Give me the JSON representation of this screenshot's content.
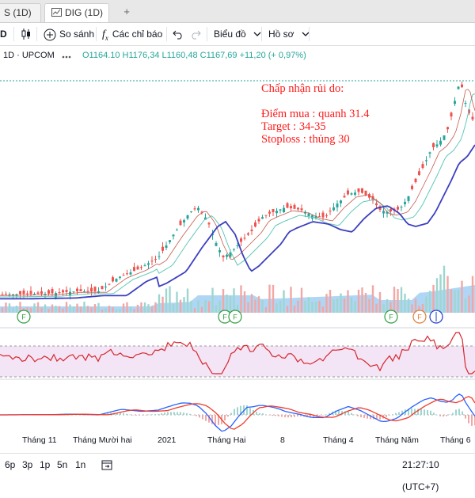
{
  "tabs": [
    {
      "label": "S (1D)",
      "active": false
    },
    {
      "label": "DIG (1D)",
      "active": true
    }
  ],
  "toolbar": {
    "interval": "D",
    "compare": "So sánh",
    "indicators": "Các chỉ báo",
    "chart_type": "Biểu đồ",
    "profile": "Hồ sơ"
  },
  "legend": {
    "symbol": "1D · UPCOM",
    "ohlc": "O1164.10 H1176,34 L1160,48 C1167,69 +11,20 (+ 0,97%)"
  },
  "annotation": {
    "title": "Chấp nhận rủi do:",
    "buy": "Điểm mua : quanh 31.4",
    "target": "Target : 34-35",
    "stoploss": "Stoploss : thủng 30"
  },
  "markers": {
    "f": "F"
  },
  "x_axis": [
    "Tháng 11",
    "Tháng Mười hai",
    "2021",
    "Tháng Hai",
    "8",
    "Tháng 4",
    "Tháng Năm",
    "Tháng 6"
  ],
  "bottom": {
    "ranges": [
      "6p",
      "3p",
      "1p",
      "5n",
      "1n"
    ],
    "clock": "21:27:10 (UTC+7)"
  },
  "colors": {
    "up": "#26a69a",
    "down": "#ef5350",
    "ma_slow": "#3b3fbf",
    "annotation": "#ff1a1a",
    "volume_area": "#6fb4ee"
  },
  "icons": [
    "candles-icon",
    "plus-circle-icon",
    "fx-icon",
    "undo-icon",
    "redo-icon",
    "chevron-down-icon",
    "calendar-range-icon"
  ]
}
